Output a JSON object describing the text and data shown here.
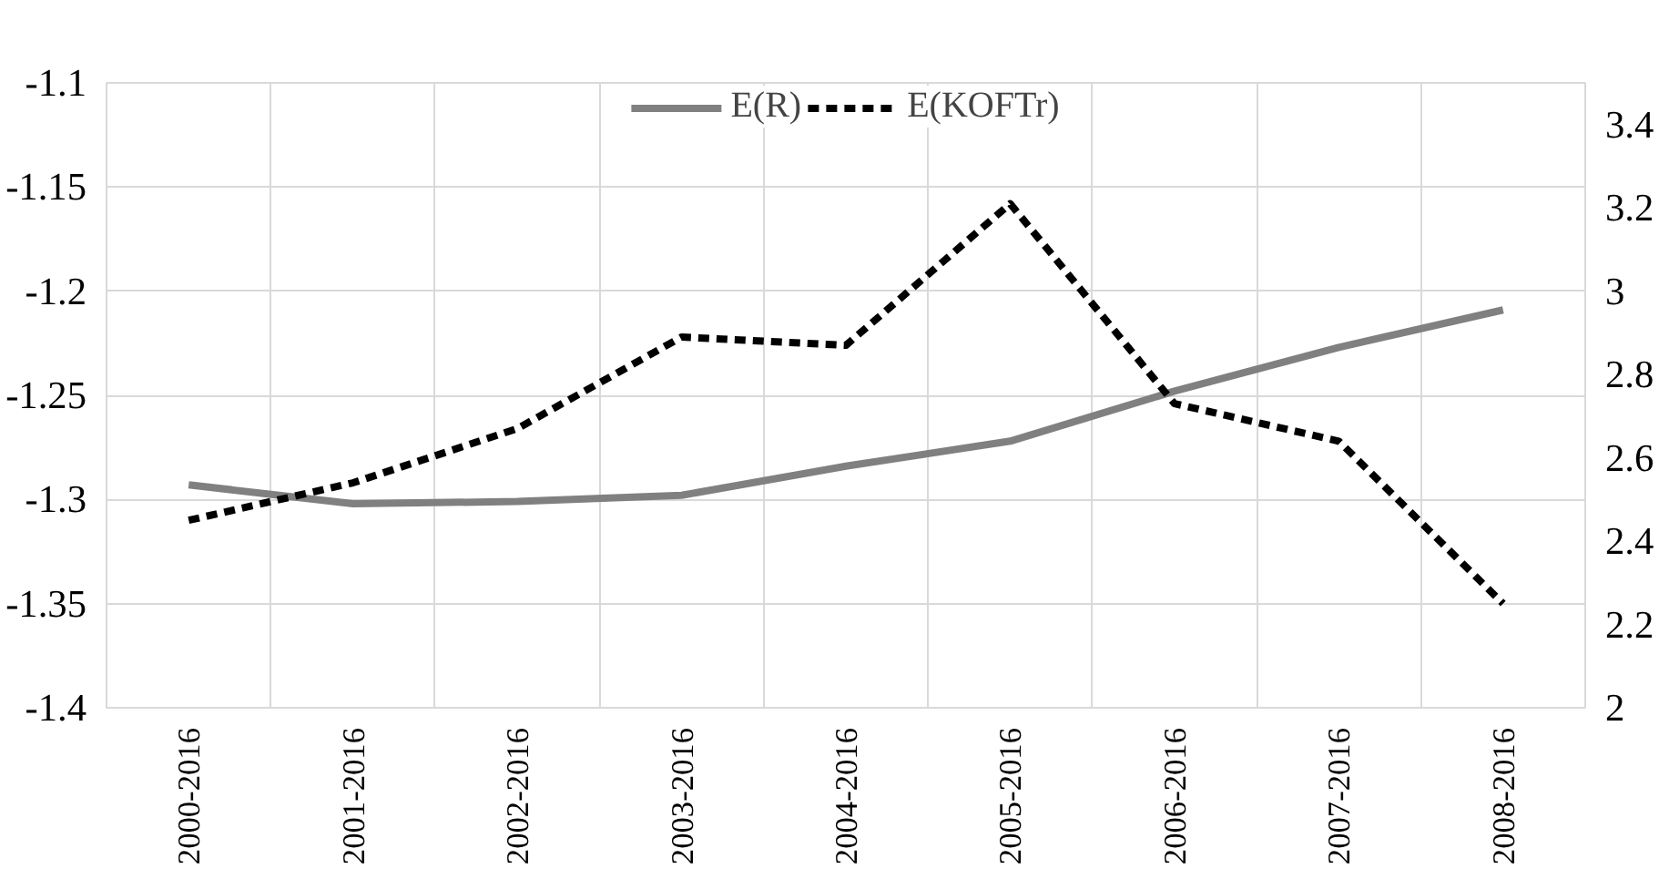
{
  "chart_data": {
    "type": "line",
    "categories": [
      "2000-2016",
      "2001-2016",
      "2002-2016",
      "2003-2016",
      "2004-2016",
      "2005-2016",
      "2006-2016",
      "2007-2016",
      "2008-2016"
    ],
    "series": [
      {
        "name": "E(R)",
        "color": "#808080",
        "line_style": "solid",
        "values": [
          -1.293,
          -1.302,
          -1.301,
          -1.298,
          -1.284,
          -1.272,
          -1.248,
          -1.227,
          -1.209
        ]
      },
      {
        "name": "E(KOFTr)",
        "color": "#000000",
        "line_style": "dashed",
        "axis": "y2",
        "values": [
          2.45,
          2.54,
          2.67,
          2.89,
          2.87,
          3.21,
          2.73,
          2.64,
          2.25
        ]
      }
    ],
    "ylim": [
      -1.4,
      -1.1
    ],
    "yticks": [
      -1.4,
      -1.35,
      -1.3,
      -1.25,
      -1.2,
      -1.15,
      -1.1
    ],
    "y2lim": [
      2,
      3.5
    ],
    "y2ticks": [
      2,
      2.2,
      2.4,
      2.6,
      2.8,
      3,
      3.2,
      3.4
    ],
    "grid": true,
    "legend": "top",
    "marker": "none"
  }
}
